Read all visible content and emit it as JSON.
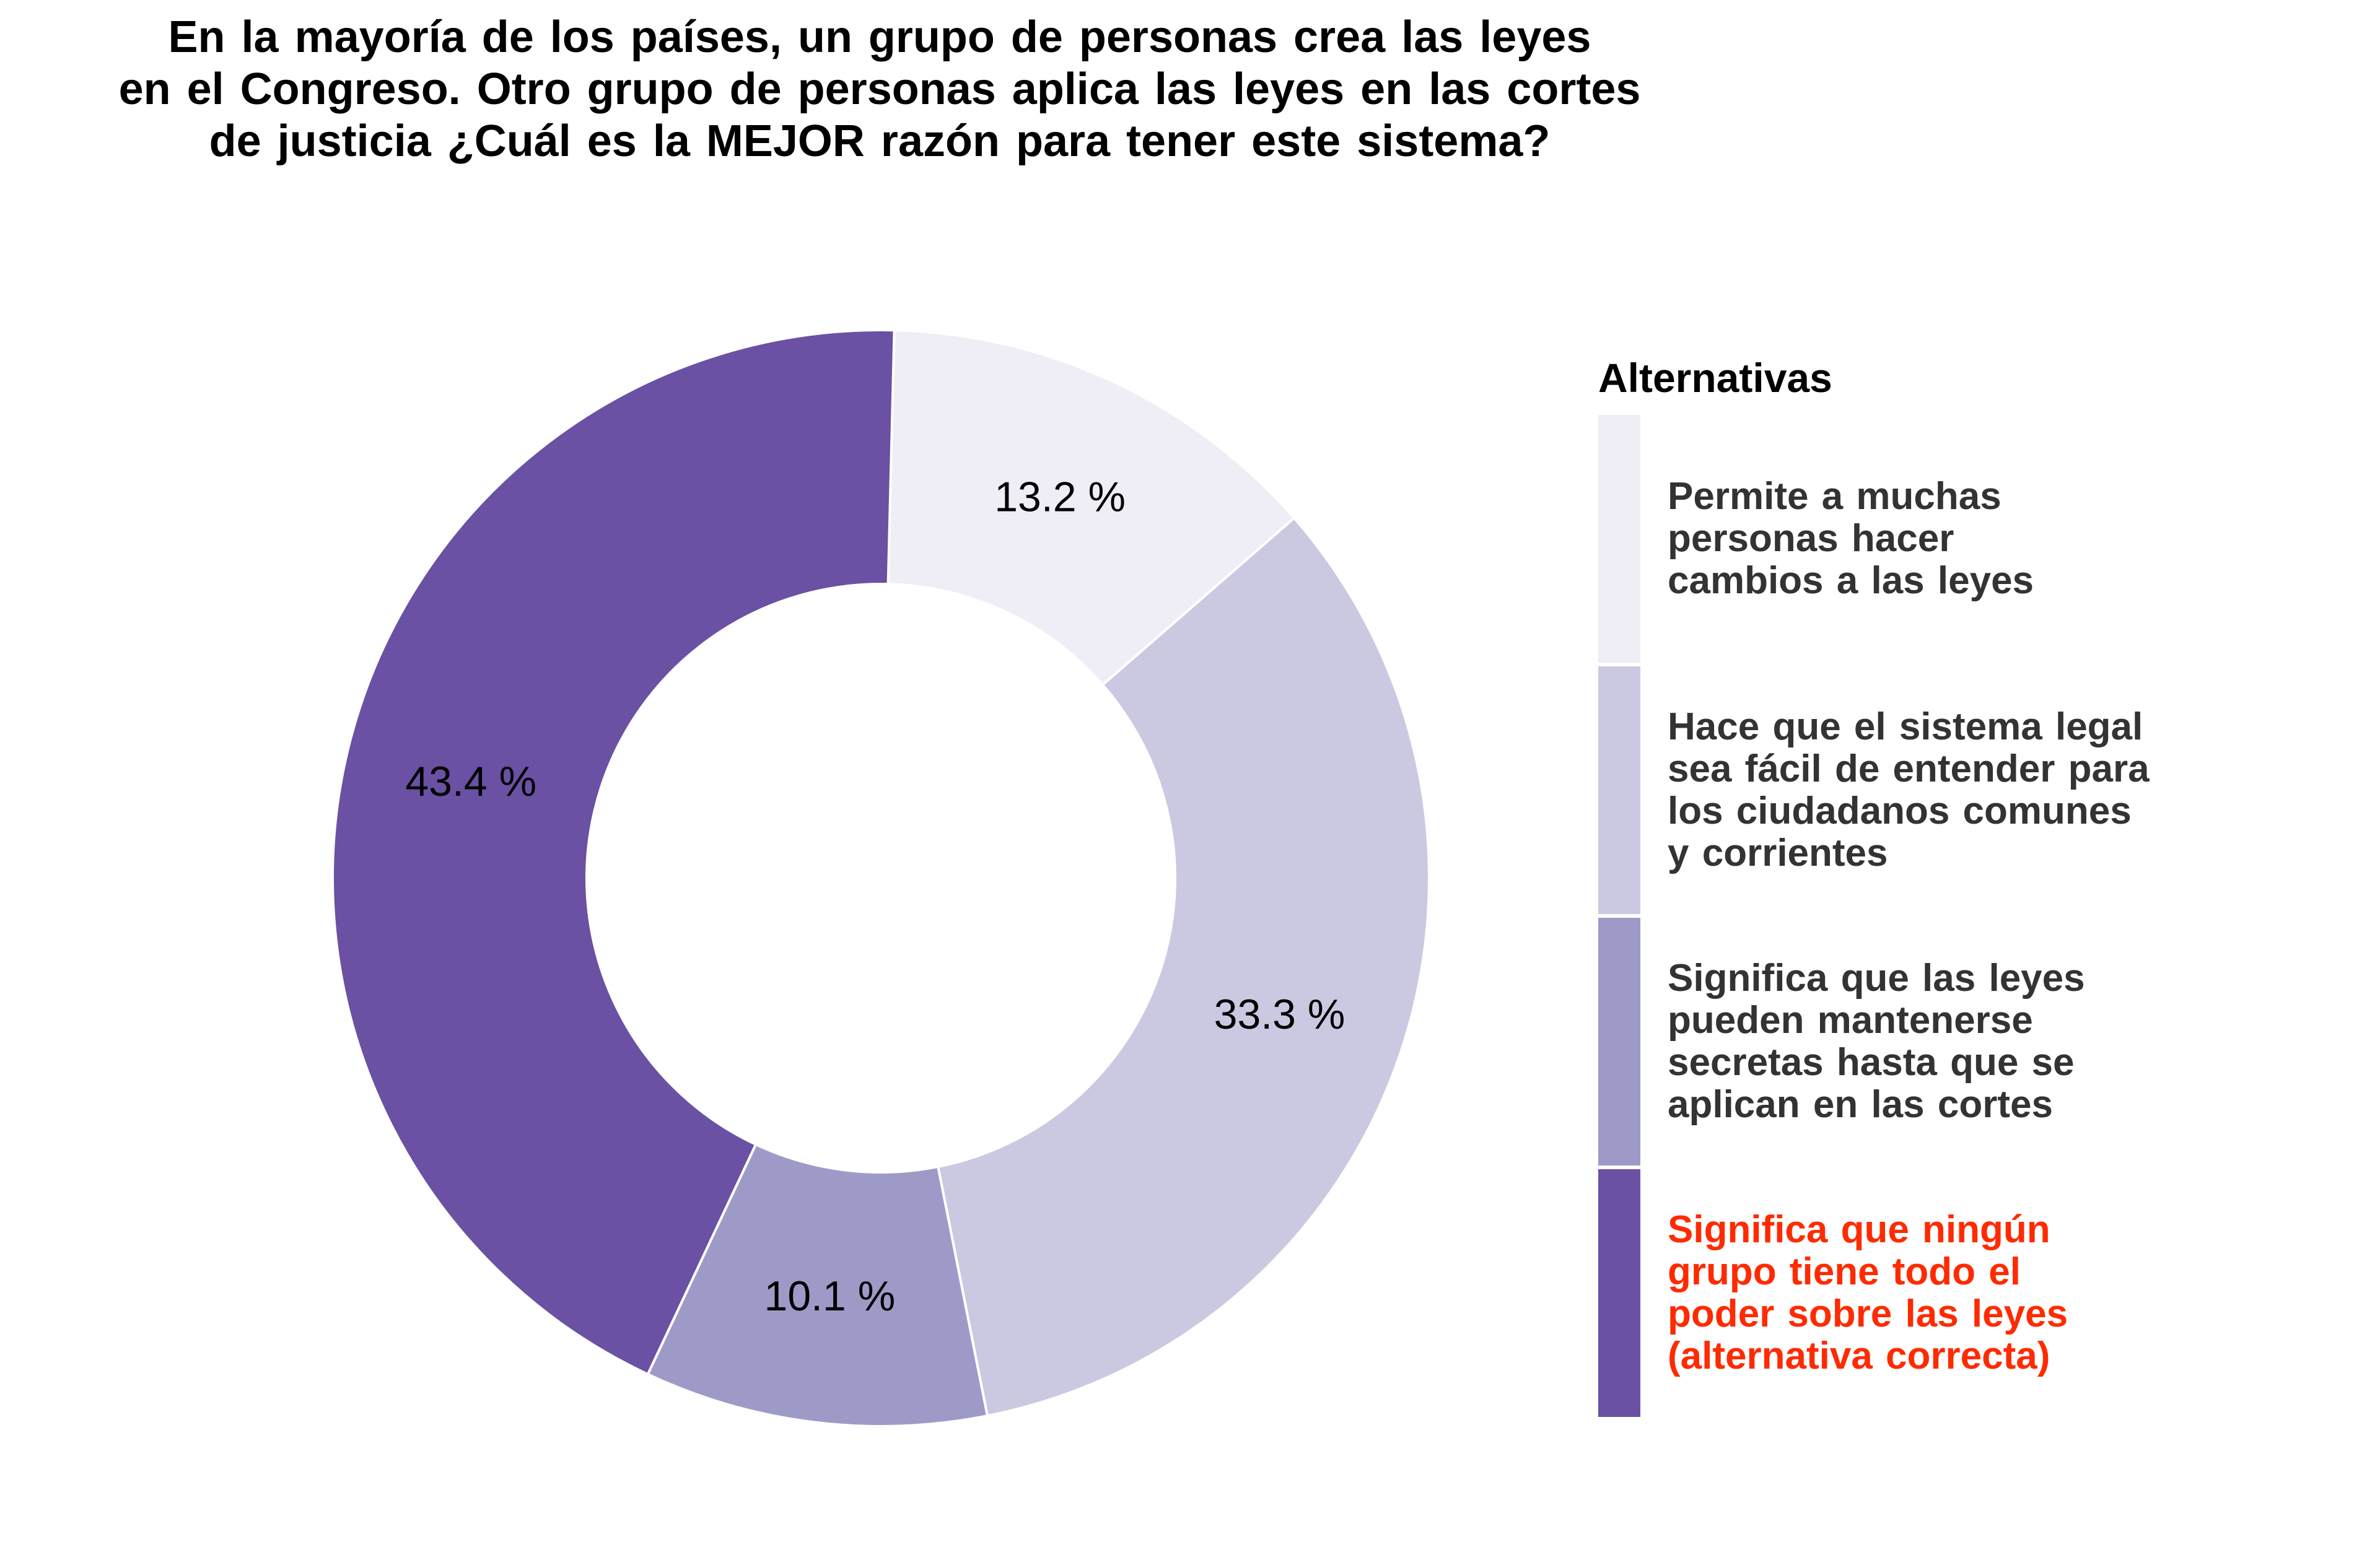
{
  "chart_data": {
    "type": "pie",
    "variant": "donut",
    "title_lines": [
      "En  la  mayoría  de  los  países,  un  grupo de  personas crea  las  leyes",
      "en el Congreso. Otro grupo de personas aplica las leyes en las cortes",
      "de justicia ¿Cuál es la MEJOR razón para tener este sistema?"
    ],
    "legend_title": "Alternativas",
    "legend_position": "right",
    "slices": [
      {
        "label_lines": [
          "Permite a muchas",
          "personas  hacer",
          "cambios  a las leyes"
        ],
        "value": 13.2,
        "value_label": "13.2 %",
        "color": "#efedf5",
        "label_color": "#333333"
      },
      {
        "label_lines": [
          "Hace que el sistema  legal",
          "sea fácil de entender  para",
          "los ciudadanos  comunes",
          "y corrientes"
        ],
        "value": 33.3,
        "value_label": "33.3 %",
        "color": "#cbc9e2",
        "label_color": "#333333"
      },
      {
        "label_lines": [
          "Significa que las leyes",
          "pueden  mantenerse",
          "secretas  hasta  que se",
          "aplican en las cortes"
        ],
        "value": 10.1,
        "value_label": "10.1 %",
        "color": "#9e9ac8",
        "label_color": "#333333"
      },
      {
        "label_lines": [
          "Significa que ningún",
          "grupo tiene todo el",
          "poder sobre las leyes",
          "(alternativa  correcta)"
        ],
        "value": 43.4,
        "value_label": "43.4 %",
        "color": "#6a51a3",
        "label_color": "#ff2a00"
      }
    ]
  }
}
